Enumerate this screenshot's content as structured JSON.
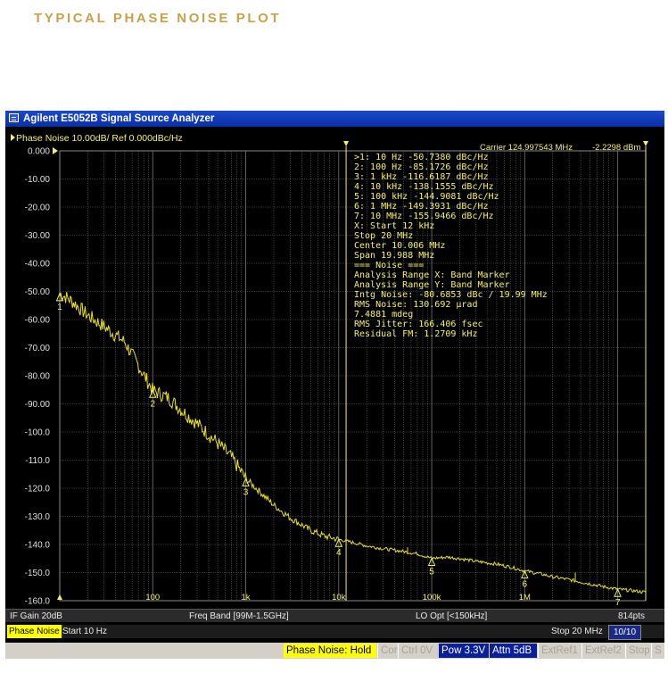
{
  "heading": "TYPICAL PHASE NOISE PLOT",
  "window": {
    "title": "Agilent E5052B Signal Source Analyzer"
  },
  "trace_header": "Phase Noise 10.00dB/ Ref 0.000dBc/Hz",
  "carrier_readout": "Carrier 124.997543 MHz",
  "carrier_level": "-2.2298 dBm",
  "marker_readout": [
    ">1:  10 Hz      -50.7380 dBc/Hz",
    "  2:  100 Hz     -85.1726 dBc/Hz",
    "  3:  1 kHz     -116.6187 dBc/Hz",
    "  4:  10 kHz    -138.1555 dBc/Hz",
    "  5:  100 kHz   -144.9081 dBc/Hz",
    "  6:  1 MHz     -149.3931 dBc/Hz",
    "  7:  10 MHz    -155.9466 dBc/Hz",
    "   X: Start 12 kHz",
    "        Stop 20 MHz",
    "      Center 10.006 MHz",
    "        Span 19.988 MHz",
    "=== Noise ===",
    "Analysis Range X: Band Marker",
    "Analysis Range Y: Band Marker",
    "Intg Noise: -80.6853 dBc / 19.99 MHz",
    " RMS Noise: 130.692 µrad",
    "             7.4881 mdeg",
    "RMS Jitter: 166.406 fsec",
    "Residual FM: 1.2709 kHz"
  ],
  "status_bar_1": {
    "if_gain": "IF Gain 20dB",
    "freq_band": "Freq Band [99M-1.5GHz]",
    "lo_opt": "LO Opt [<150kHz]",
    "points": "814pts"
  },
  "status_bar_2": {
    "mode": "Phase Noise",
    "start": "Start 10 Hz",
    "stop": "Stop 20 MHz",
    "page": "10/10"
  },
  "status_bar_3": [
    {
      "label": "Phase Noise: Hold",
      "state": "active"
    },
    {
      "label": "Cor",
      "state": "off"
    },
    {
      "label": "Ctrl  0V",
      "state": "off"
    },
    {
      "label": "Pow  3.3V",
      "state": "on"
    },
    {
      "label": "Attn 5dB",
      "state": "on"
    },
    {
      "label": "ExtRef1",
      "state": "off"
    },
    {
      "label": "ExtRef2",
      "state": "off"
    },
    {
      "label": "Stop",
      "state": "off"
    },
    {
      "label": "S",
      "state": "off"
    }
  ],
  "colors": {
    "trace": "#e8e020",
    "text": "#f5f06a",
    "grid": "#6b6b6b",
    "background": "#000000",
    "heading": "#c9a14a"
  },
  "chart_data": {
    "type": "line",
    "title": "",
    "x_scale": "log",
    "xlim": [
      10,
      20000000
    ],
    "ylim": [
      -160,
      0
    ],
    "y_ticks": [
      "0.000",
      "-10.00",
      "-20.00",
      "-30.00",
      "-40.00",
      "-50.00",
      "-60.00",
      "-70.00",
      "-80.00",
      "-90.00",
      "-100.0",
      "-110.0",
      "-120.0",
      "-130.0",
      "-140.0",
      "-150.0",
      "-160.0"
    ],
    "x_tick_labels": [
      "100",
      "1k",
      "10k",
      "100k",
      "1M"
    ],
    "band_markers_hz": [
      12000,
      20000000
    ],
    "series": [
      {
        "x": [
          10,
          13,
          20,
          30,
          50,
          100,
          150,
          200,
          300,
          500,
          700,
          1000,
          1500,
          2000,
          3000,
          5000,
          7000,
          10000,
          15000,
          20000,
          30000,
          50000,
          70000,
          100000,
          150000,
          200000,
          300000,
          500000,
          700000,
          1000000,
          1500000,
          2000000,
          3000000,
          5000000,
          7000000,
          10000000,
          15000000,
          20000000
        ],
        "y": [
          -50.7,
          -53,
          -58.5,
          -62.5,
          -68,
          -85.2,
          -88,
          -92,
          -97,
          -104,
          -109,
          -116.6,
          -122,
          -126,
          -130.5,
          -135,
          -137,
          -138.2,
          -139.5,
          -140.5,
          -141.5,
          -142.5,
          -143.3,
          -144.9,
          -144.5,
          -145,
          -146,
          -147,
          -148,
          -149.4,
          -150.5,
          -151.5,
          -152.5,
          -154,
          -155,
          -155.9,
          -156.5,
          -157
        ]
      }
    ],
    "markers": [
      {
        "label": "1",
        "x": 10,
        "y": -50.738
      },
      {
        "label": "2",
        "x": 100,
        "y": -85.1726
      },
      {
        "label": "3",
        "x": 1000,
        "y": -116.6187
      },
      {
        "label": "4",
        "x": 10000,
        "y": -138.1555
      },
      {
        "label": "5",
        "x": 100000,
        "y": -144.9081
      },
      {
        "label": "6",
        "x": 1000000,
        "y": -149.3931
      },
      {
        "label": "7",
        "x": 10000000,
        "y": -155.9466
      }
    ],
    "spurs": [
      {
        "x": 55000,
        "y": -141
      },
      {
        "x": 3500000,
        "y": -150
      }
    ]
  }
}
